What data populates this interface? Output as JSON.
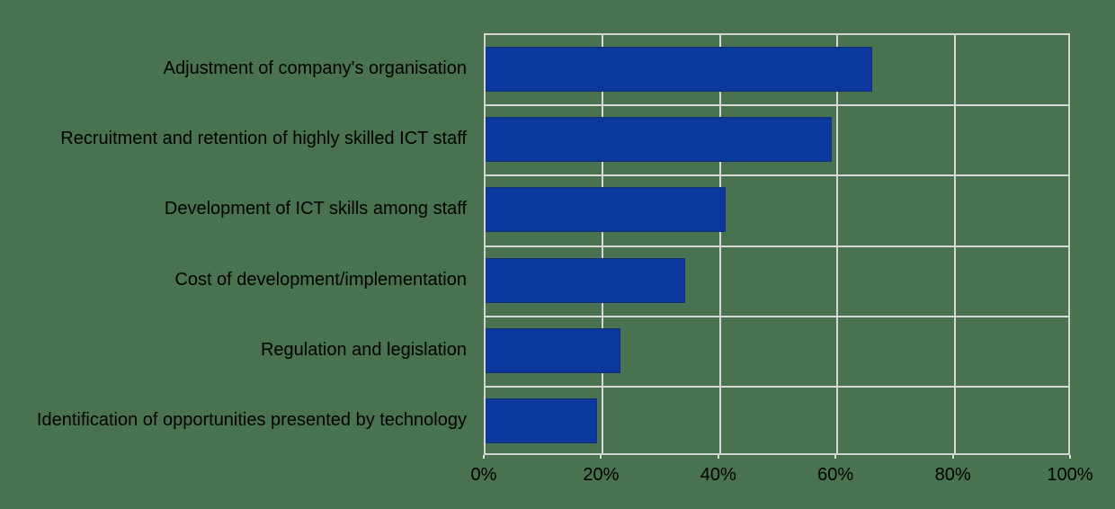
{
  "chart_data": {
    "type": "bar",
    "orientation": "horizontal",
    "title": "",
    "xlabel": "",
    "ylabel": "",
    "categories": [
      "Adjustment of company's organisation",
      "Recruitment and retention of highly skilled ICT staff",
      "Development of ICT skills among staff",
      "Cost of development/implementation",
      "Regulation and legislation",
      "Identification of opportunities presented by technology"
    ],
    "values": [
      66,
      59,
      41,
      34,
      23,
      19
    ],
    "unit": "%",
    "xlim": [
      0,
      100
    ],
    "x_tick_values": [
      0,
      20,
      40,
      60,
      80,
      100
    ],
    "x_tick_labels": [
      "0%",
      "20%",
      "40%",
      "60%",
      "80%",
      "100%"
    ],
    "grid": true,
    "legend": false,
    "colors": {
      "background": "#497350",
      "bar_fill": "#0a389c",
      "bar_border": "#17306f",
      "gridline": "#d8d8d8",
      "plot_border": "#d4d4d4",
      "text": "#000000"
    }
  }
}
